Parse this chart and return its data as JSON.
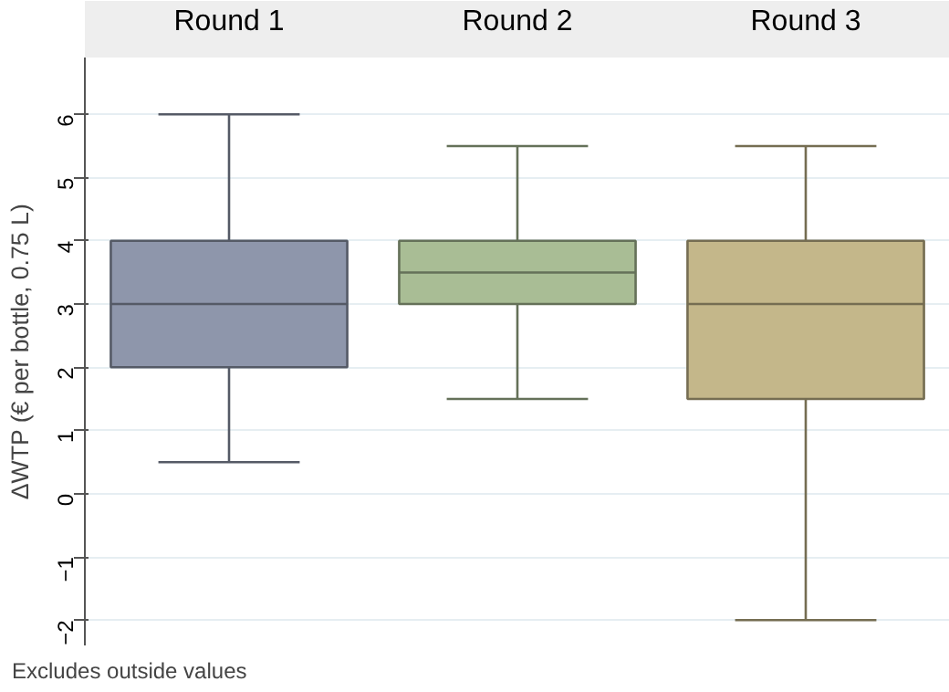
{
  "chart_data": {
    "type": "box",
    "ylabel": "ΔWTP (€ per bottle, 0.75 L)",
    "categories": [
      "Round 1",
      "Round 2",
      "Round 3"
    ],
    "colors": [
      "#8e96ab",
      "#a9bd95",
      "#c4b78a"
    ],
    "boxes": [
      {
        "low": 0.5,
        "q1": 2,
        "median": 3,
        "q3": 4,
        "high": 6
      },
      {
        "low": 1.5,
        "q1": 3,
        "median": 3.5,
        "q3": 4,
        "high": 5.5
      },
      {
        "low": -2,
        "q1": 1.5,
        "median": 3,
        "q3": 4,
        "high": 5.5
      }
    ],
    "ylim": [
      -2.4,
      6.9
    ],
    "yticks": [
      -2,
      -1,
      0,
      1,
      2,
      3,
      4,
      5,
      6
    ],
    "grid": "y",
    "annotations": [
      "Excludes outside values"
    ]
  }
}
